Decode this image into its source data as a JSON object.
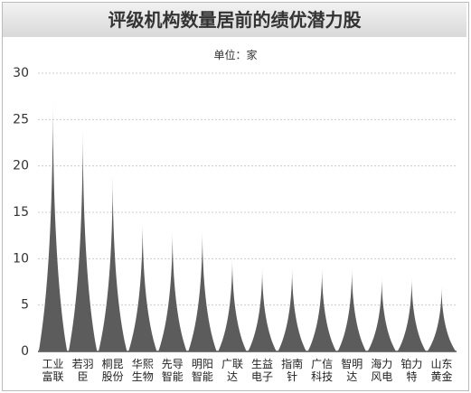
{
  "chart_data": {
    "type": "spike",
    "title": "评级机构数量居前的绩优潜力股",
    "subtitle": "单位：家",
    "categories": [
      "工业\n富联",
      "若羽\n臣",
      "桐昆\n股份",
      "华熙\n生物",
      "先导\n智能",
      "明阳\n智能",
      "广联\n达",
      "生益\n电子",
      "指南\n针",
      "广信\n科技",
      "智明\n达",
      "海力\n风电",
      "铂力\n特",
      "山东\n黄金"
    ],
    "values": [
      27,
      24,
      19,
      14,
      13,
      13,
      10,
      9,
      9,
      9,
      9,
      8,
      8,
      7
    ],
    "color": "#5c5c5c",
    "ylim": [
      0,
      30
    ],
    "yticks": [
      0,
      5,
      10,
      15,
      20,
      25,
      30
    ],
    "grid": true
  }
}
